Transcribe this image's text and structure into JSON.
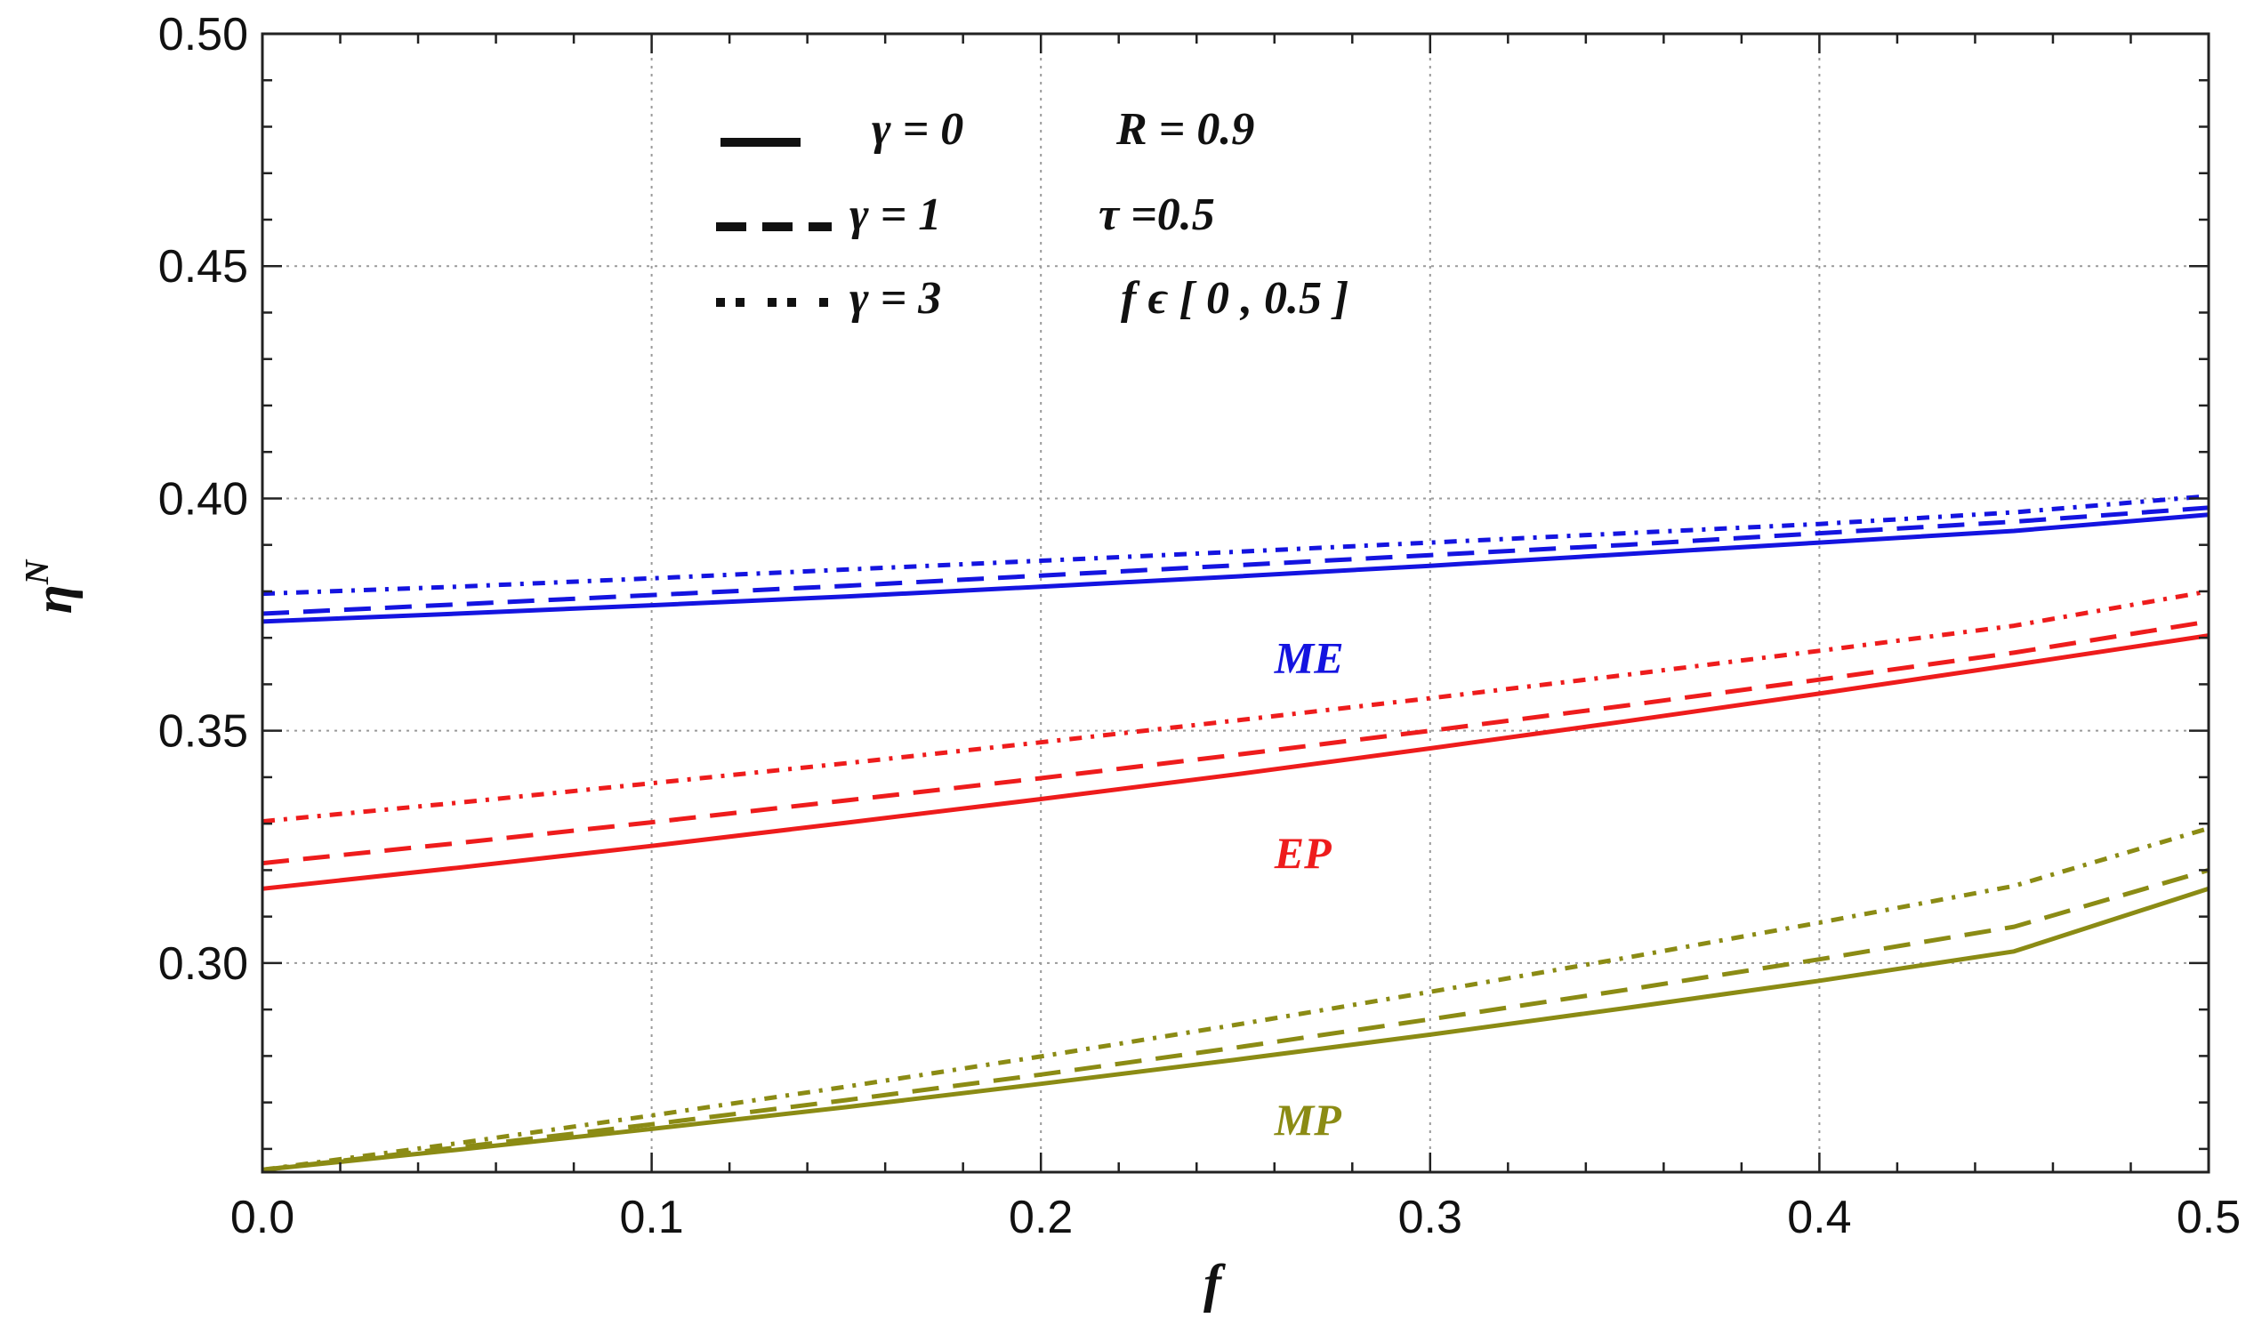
{
  "chart_data": {
    "type": "line",
    "title": "",
    "xlabel": "f",
    "ylabel": "η",
    "ylabel_superscript": "N",
    "xlim": [
      0,
      0.5
    ],
    "ylim": [
      0.255,
      0.5
    ],
    "grid": true,
    "x_ticks": [
      0.0,
      0.1,
      0.2,
      0.3,
      0.4,
      0.5
    ],
    "x_tick_labels": [
      "0.0",
      "0.1",
      "0.2",
      "0.3",
      "0.4",
      "0.5"
    ],
    "y_ticks": [
      0.3,
      0.35,
      0.4,
      0.45,
      0.5
    ],
    "y_tick_labels": [
      "0.30",
      "0.35",
      "0.40",
      "0.45",
      "0.50"
    ],
    "x": [
      0,
      0.05,
      0.1,
      0.15,
      0.2,
      0.25,
      0.3,
      0.35,
      0.4,
      0.45,
      0.5
    ],
    "series": [
      {
        "name": "ME γ=0",
        "group": "ME",
        "gamma": "0",
        "style": "solid",
        "color": "#1414e0",
        "values": [
          0.3735,
          0.3752,
          0.377,
          0.3789,
          0.381,
          0.3832,
          0.3855,
          0.388,
          0.3905,
          0.393,
          0.3965
        ]
      },
      {
        "name": "ME γ=1",
        "group": "ME",
        "gamma": "1",
        "style": "dashed",
        "color": "#1414e0",
        "values": [
          0.3752,
          0.3772,
          0.3792,
          0.3812,
          0.3834,
          0.3856,
          0.3878,
          0.39,
          0.3925,
          0.395,
          0.398
        ]
      },
      {
        "name": "ME γ=3",
        "group": "ME",
        "gamma": "3",
        "style": "dashdot",
        "color": "#1414e0",
        "values": [
          0.3795,
          0.381,
          0.3828,
          0.3847,
          0.3866,
          0.3885,
          0.3905,
          0.3925,
          0.3945,
          0.397,
          0.4005
        ]
      },
      {
        "name": "EP γ=0",
        "group": "EP",
        "gamma": "0",
        "style": "solid",
        "color": "#ee1c1c",
        "values": [
          0.316,
          0.3205,
          0.3252,
          0.3302,
          0.3353,
          0.3406,
          0.3462,
          0.352,
          0.358,
          0.3642,
          0.3705
        ]
      },
      {
        "name": "EP γ=1",
        "group": "EP",
        "gamma": "1",
        "style": "dashed",
        "color": "#ee1c1c",
        "values": [
          0.3215,
          0.3258,
          0.3303,
          0.335,
          0.3398,
          0.3448,
          0.35,
          0.3554,
          0.361,
          0.3668,
          0.3735
        ]
      },
      {
        "name": "EP γ=3",
        "group": "EP",
        "gamma": "3",
        "style": "dashdot",
        "color": "#ee1c1c",
        "values": [
          0.3305,
          0.3345,
          0.3387,
          0.343,
          0.3475,
          0.3522,
          0.357,
          0.362,
          0.3672,
          0.3726,
          0.38
        ]
      },
      {
        "name": "MP γ=0",
        "group": "MP",
        "gamma": "0",
        "style": "solid",
        "color": "#8b8b14",
        "values": [
          0.2555,
          0.2598,
          0.2643,
          0.269,
          0.274,
          0.2792,
          0.2846,
          0.2903,
          0.2962,
          0.3025,
          0.316
        ]
      },
      {
        "name": "MP γ=1",
        "group": "MP",
        "gamma": "1",
        "style": "dashed",
        "color": "#8b8b14",
        "values": [
          0.2555,
          0.2603,
          0.2653,
          0.2705,
          0.276,
          0.2818,
          0.2879,
          0.2942,
          0.3008,
          0.3078,
          0.32
        ]
      },
      {
        "name": "MP γ=3",
        "group": "MP",
        "gamma": "3",
        "style": "dashdot",
        "color": "#8b8b14",
        "values": [
          0.2555,
          0.2612,
          0.2672,
          0.2734,
          0.2799,
          0.2867,
          0.2938,
          0.3011,
          0.3087,
          0.3166,
          0.329
        ]
      }
    ],
    "curve_labels": [
      {
        "text": "ME",
        "color": "#1414e0",
        "x": 0.26,
        "y": 0.3625
      },
      {
        "text": "EP",
        "color": "#ee1c1c",
        "x": 0.26,
        "y": 0.3205
      },
      {
        "text": "MP",
        "color": "#8b8b14",
        "x": 0.26,
        "y": 0.263
      }
    ],
    "legend": {
      "placement": "top-left",
      "entries": [
        {
          "style": "solid",
          "label": "γ = 0",
          "note": "R = 0.9"
        },
        {
          "style": "dashed",
          "label": "γ = 1",
          "note": "τ =0.5"
        },
        {
          "style": "dashdot",
          "label": "γ = 3",
          "note": "f ϵ [ 0 , 0.5 ]"
        }
      ]
    }
  }
}
